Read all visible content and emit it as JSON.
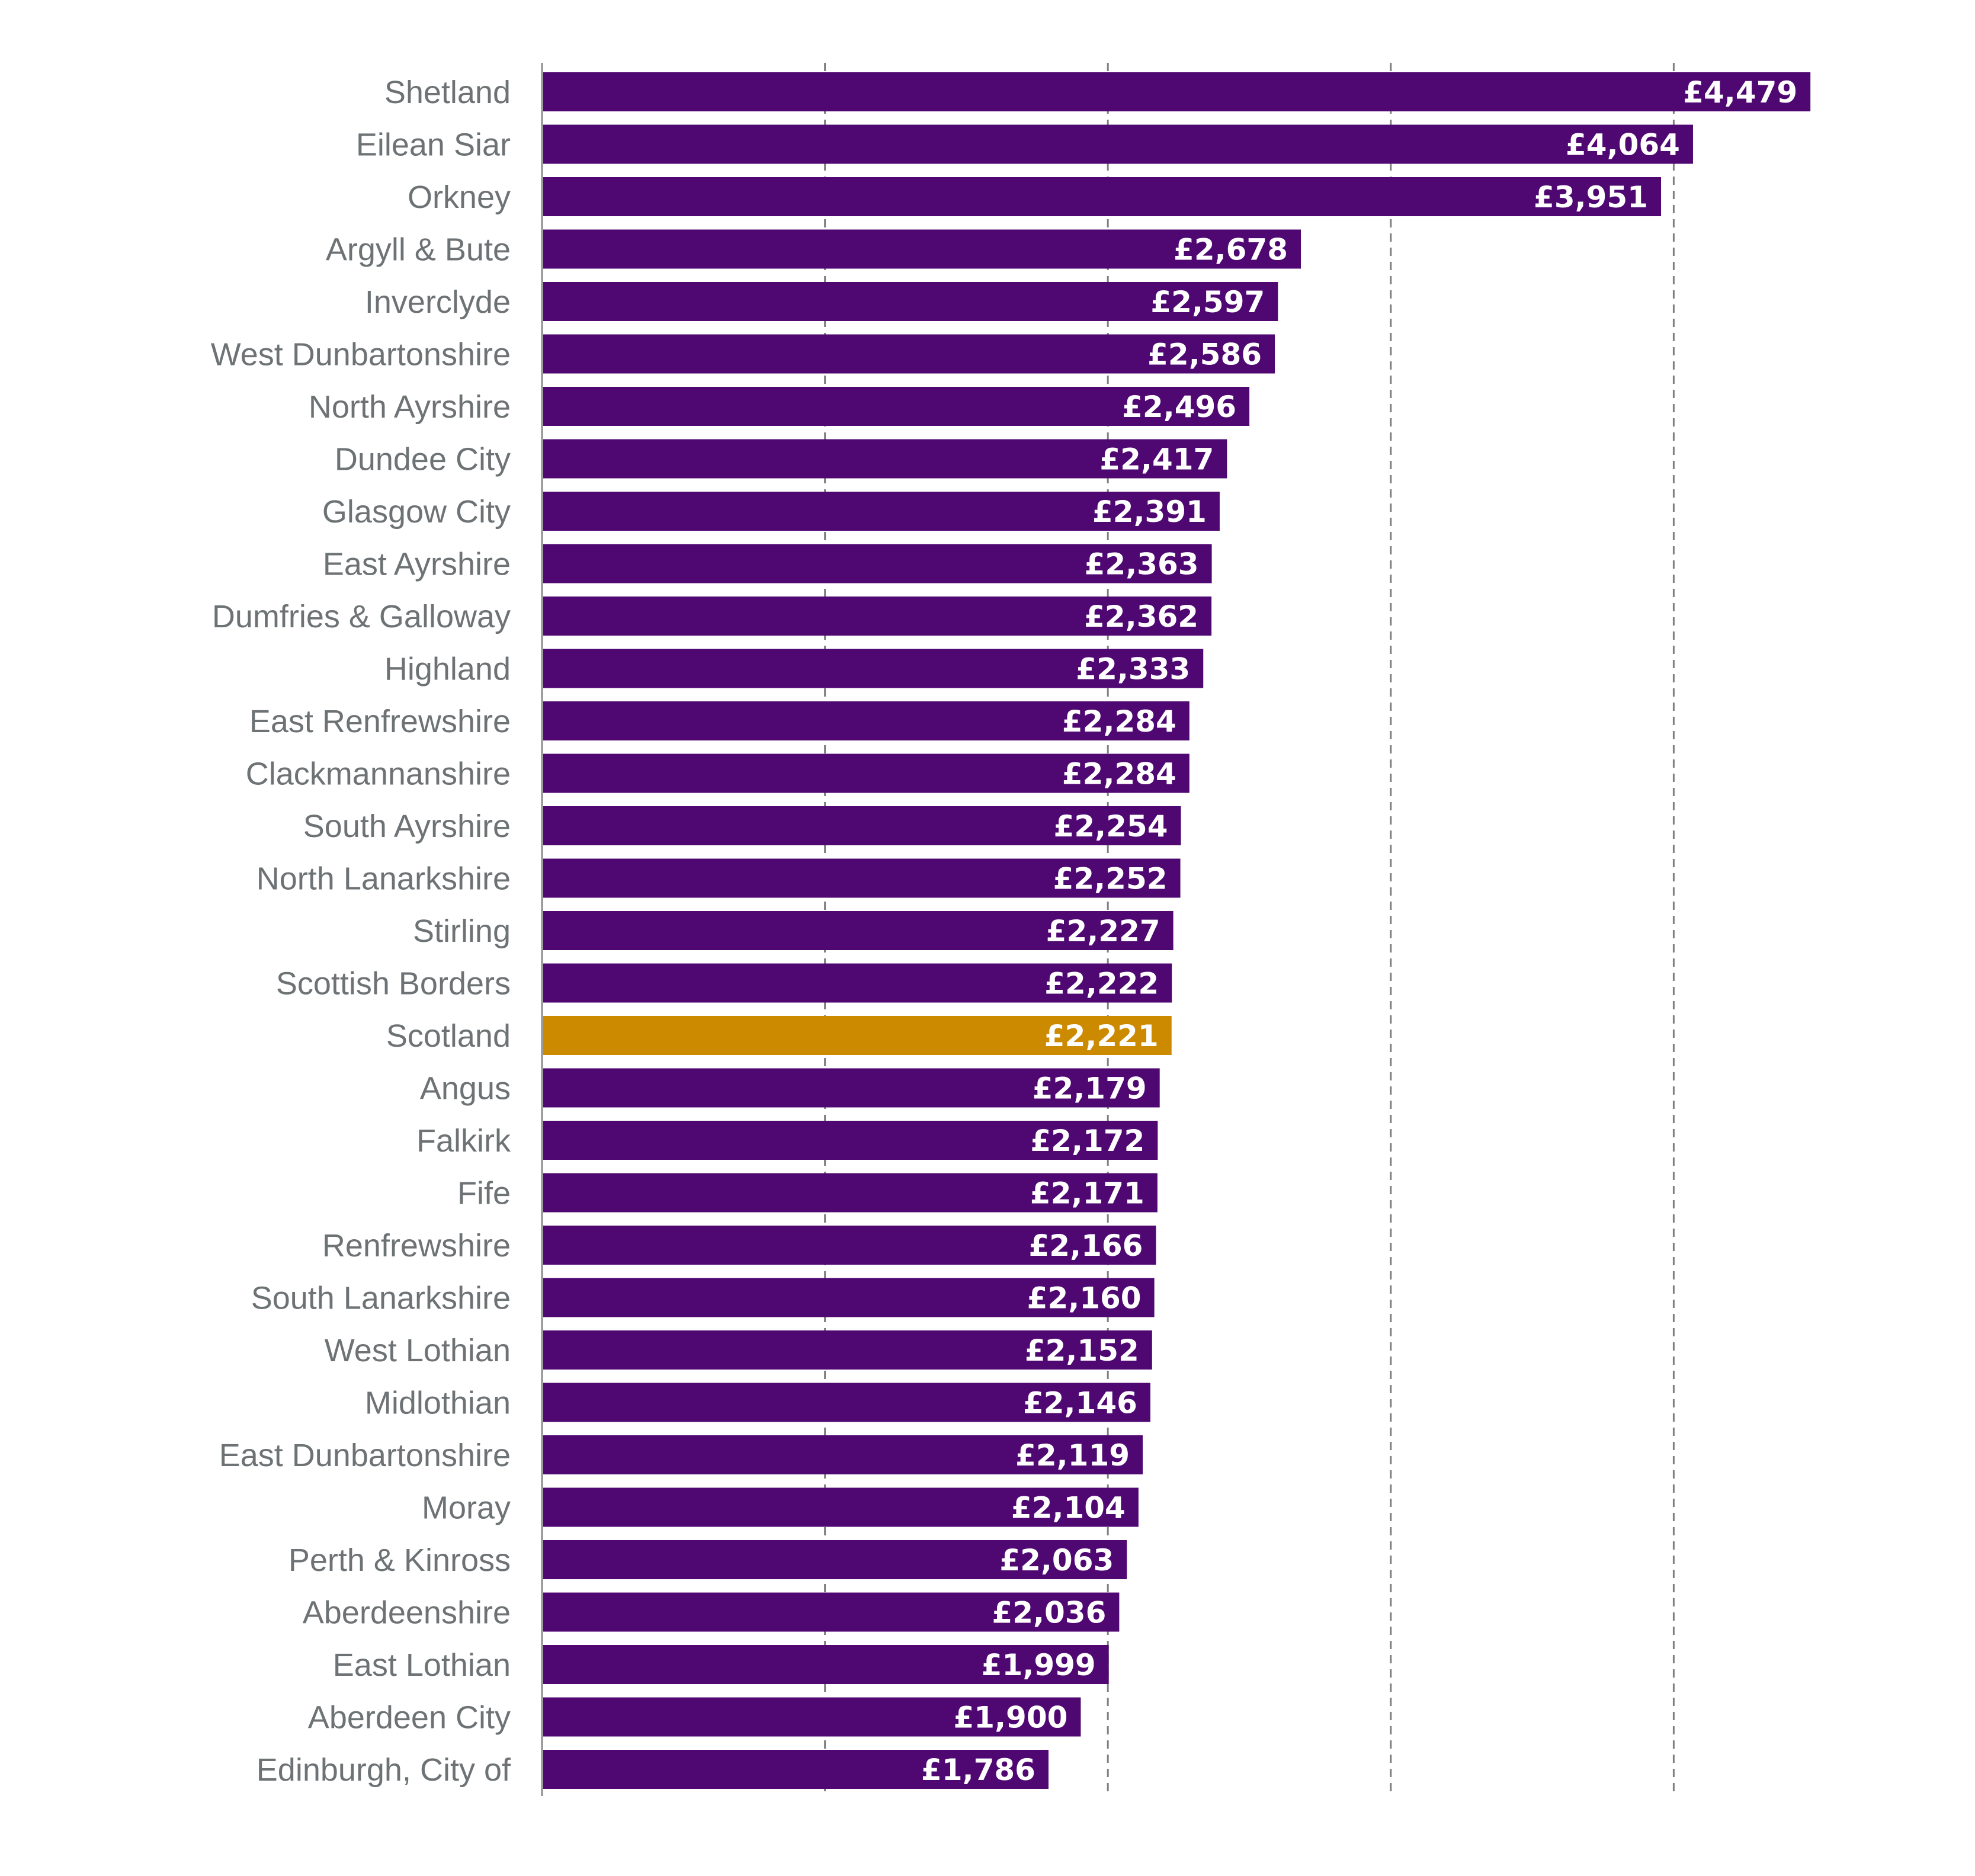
{
  "chart_data": {
    "type": "bar",
    "orientation": "horizontal",
    "title": "",
    "xlabel": "",
    "ylabel": "",
    "xlim": [
      0,
      4500
    ],
    "gridlines_x": [
      1000,
      2000,
      3000,
      4000
    ],
    "grid": "vertical dashed",
    "value_prefix": "£",
    "colors": {
      "default": "#4f0872",
      "highlight": "#cc8a00",
      "grid": "#7f7f7f",
      "label": "#6d7275"
    },
    "highlight_category": "Scotland",
    "categories": [
      "Shetland",
      "Eilean Siar",
      "Orkney",
      "Argyll & Bute",
      "Inverclyde",
      "West Dunbartonshire",
      "North Ayrshire",
      "Dundee City",
      "Glasgow City",
      "East Ayrshire",
      "Dumfries & Galloway",
      "Highland",
      "East Renfrewshire",
      "Clackmannanshire",
      "South Ayrshire",
      "North Lanarkshire",
      "Stirling",
      "Scottish Borders",
      "Scotland",
      "Angus",
      "Falkirk",
      "Fife",
      "Renfrewshire",
      "South Lanarkshire",
      "West Lothian",
      "Midlothian",
      "East Dunbartonshire",
      "Moray",
      "Perth & Kinross",
      "Aberdeenshire",
      "East Lothian",
      "Aberdeen City",
      "Edinburgh, City of"
    ],
    "values": [
      4479,
      4064,
      3951,
      2678,
      2597,
      2586,
      2496,
      2417,
      2391,
      2363,
      2362,
      2333,
      2284,
      2284,
      2254,
      2252,
      2227,
      2222,
      2221,
      2179,
      2172,
      2171,
      2166,
      2160,
      2152,
      2146,
      2119,
      2104,
      2063,
      2036,
      1999,
      1900,
      1786
    ],
    "data_labels": [
      "£4,479",
      "£4,064",
      "£3,951",
      "£2,678",
      "£2,597",
      "£2,586",
      "£2,496",
      "£2,417",
      "£2,391",
      "£2,363",
      "£2,362",
      "£2,333",
      "£2,284",
      "£2,284",
      "£2,254",
      "£2,252",
      "£2,227",
      "£2,222",
      "£2,221",
      "£2,179",
      "£2,172",
      "£2,171",
      "£2,166",
      "£2,160",
      "£2,152",
      "£2,146",
      "£2,119",
      "£2,104",
      "£2,063",
      "£2,036",
      "£1,999",
      "£1,900",
      "£1,786"
    ]
  }
}
